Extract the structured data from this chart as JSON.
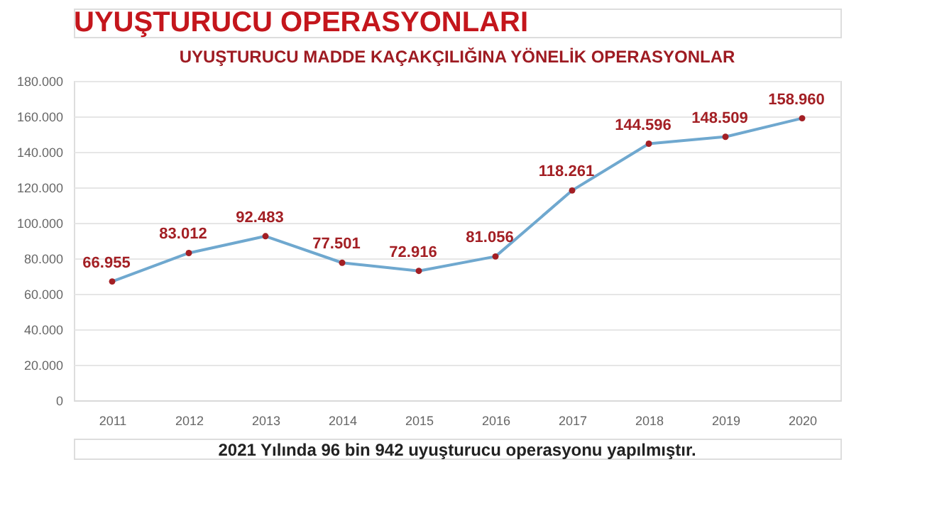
{
  "chart_data": {
    "type": "line",
    "title": "UYUŞTURUCU OPERASYONLARI",
    "subtitle": "UYUŞTURUCU MADDE KAÇAKÇILIĞINA YÖNELİK OPERASYONLAR",
    "categories": [
      "2011",
      "2012",
      "2013",
      "2014",
      "2015",
      "2016",
      "2017",
      "2018",
      "2019",
      "2020"
    ],
    "series": [
      {
        "color": "#6fa8cf",
        "values": [
          66955,
          83012,
          92483,
          77501,
          72916,
          81056,
          118261,
          144596,
          148509,
          158960
        ],
        "value_labels": [
          "66.955",
          "83.012",
          "92.483",
          "77.501",
          "72.916",
          "81.056",
          "118.261",
          "144.596",
          "148.509",
          "158.960"
        ]
      }
    ],
    "ylim": [
      0,
      180000
    ],
    "yticks": [
      0,
      {
        "value": 20000,
        "label": "20.000"
      },
      {
        "value": 40000,
        "label": "40.000"
      },
      {
        "value": 60000,
        "label": "60.000"
      },
      {
        "value": 80000,
        "label": "80.000"
      },
      {
        "value": 100000,
        "label": "100.000"
      },
      {
        "value": 120000,
        "label": "120.000"
      },
      {
        "value": 140000,
        "label": "140.000"
      },
      {
        "value": 160000,
        "label": "160.000"
      },
      {
        "value": 180000,
        "label": "180.000"
      }
    ],
    "grid": "y",
    "marker": "circle",
    "line_style": "solid",
    "annotations": [
      "2021 Yılında 96 bin 942 uyuşturucu operasyonu yapılmıştır."
    ]
  }
}
